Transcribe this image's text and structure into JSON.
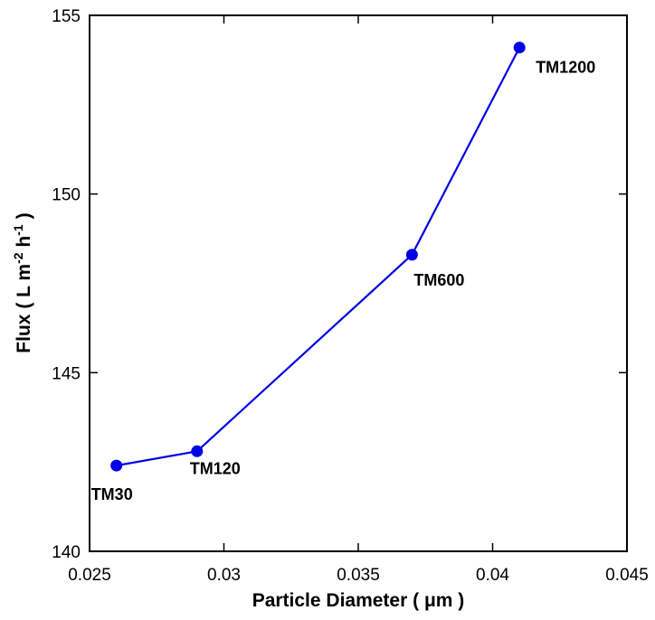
{
  "chart_data": {
    "type": "line",
    "xlabel": "Particle Diameter ( μm )",
    "ylabel": {
      "base": "Flux ( L m",
      "sup1": "-2",
      "mid": " h",
      "sup2": "-1",
      "end": ")"
    },
    "xlim": [
      0.025,
      0.045
    ],
    "ylim": [
      140,
      155
    ],
    "x_ticks": [
      0.025,
      0.03,
      0.035,
      0.04,
      0.045
    ],
    "x_tick_labels": [
      "0.025",
      "0.03",
      "0.035",
      "0.04",
      "0.045"
    ],
    "y_ticks": [
      140,
      145,
      150,
      155
    ],
    "y_tick_labels": [
      "140",
      "145",
      "150",
      "155"
    ],
    "grid": false,
    "series": [
      {
        "color": "#0000e6",
        "points": [
          {
            "x": 0.026,
            "y": 142.4,
            "label": "TM30"
          },
          {
            "x": 0.029,
            "y": 142.8,
            "label": "TM120"
          },
          {
            "x": 0.037,
            "y": 148.3,
            "label": "TM600"
          },
          {
            "x": 0.041,
            "y": 154.1,
            "label": "TM1200"
          }
        ]
      }
    ]
  }
}
